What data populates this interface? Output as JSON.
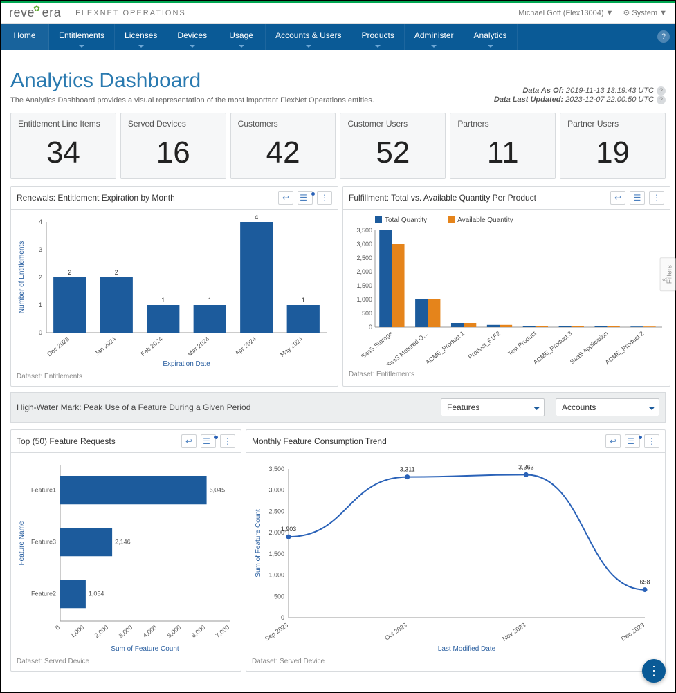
{
  "brand": {
    "logo_prefix": "reve",
    "logo_suffix": "era",
    "product": "FLEXNET OPERATIONS"
  },
  "user": {
    "display": "Michael Goff (Flex13004) ▼",
    "system": "System ▼"
  },
  "nav": [
    {
      "label": "Home"
    },
    {
      "label": "Entitlements"
    },
    {
      "label": "Licenses"
    },
    {
      "label": "Devices"
    },
    {
      "label": "Usage"
    },
    {
      "label": "Accounts & Users"
    },
    {
      "label": "Products"
    },
    {
      "label": "Administer"
    },
    {
      "label": "Analytics"
    }
  ],
  "title": "Analytics Dashboard",
  "subtitle": "The Analytics Dashboard provides a visual representation of the most important FlexNet Operations entities.",
  "data_as_of_label": "Data As Of:",
  "data_as_of": "2019-11-13 13:19:43 UTC",
  "data_updated_label": "Data Last Updated:",
  "data_updated": "2023-12-07 22:00:50 UTC",
  "kpis": [
    {
      "label": "Entitlement Line Items",
      "value": "34"
    },
    {
      "label": "Served Devices",
      "value": "16"
    },
    {
      "label": "Customers",
      "value": "42"
    },
    {
      "label": "Customer Users",
      "value": "52"
    },
    {
      "label": "Partners",
      "value": "11"
    },
    {
      "label": "Partner Users",
      "value": "19"
    }
  ],
  "renewals": {
    "title": "Renewals: Entitlement Expiration by Month",
    "dataset": "Dataset: Entitlements",
    "xlabel": "Expiration Date",
    "ylabel": "Number of Entitlements",
    "ymax": 4,
    "categories": [
      "Dec 2023",
      "Jan 2024",
      "Feb 2024",
      "Mar 2024",
      "Apr 2024",
      "May 2024"
    ],
    "values": [
      2,
      2,
      1,
      1,
      4,
      1
    ],
    "bar_color": "#1c5b9c"
  },
  "fulfillment": {
    "title": "Fulfillment: Total vs. Available Quantity Per Product",
    "dataset": "Dataset: Entitlements",
    "legend_total": "Total Quantity",
    "legend_avail": "Available Quantity",
    "ymax": 3500,
    "ytick": 500,
    "categories": [
      "SaaS Storage",
      "SaaS Metered O…",
      "ACME_Product 1",
      "Product_F1F2",
      "Test Product",
      "ACME_Product 3",
      "SaaS Application",
      "ACME_Product 2"
    ],
    "total": [
      3500,
      1000,
      150,
      80,
      50,
      40,
      30,
      20
    ],
    "available": [
      3000,
      1000,
      150,
      80,
      50,
      40,
      30,
      20
    ],
    "total_color": "#1c5b9c",
    "avail_color": "#e5841b"
  },
  "hwm": {
    "title": "High-Water Mark: Peak Use of a Feature During a Given Period",
    "features_sel": "Features",
    "accounts_sel": "Accounts"
  },
  "top50": {
    "title": "Top (50) Feature Requests",
    "dataset": "Dataset: Served Device",
    "xlabel": "Sum of Feature Count",
    "ylabel": "Feature Name",
    "xmax": 7000,
    "xtick": 1000,
    "categories": [
      "Feature1",
      "Feature3",
      "Feature2"
    ],
    "values": [
      6045,
      2146,
      1054
    ],
    "bar_color": "#1c5b9c"
  },
  "trend": {
    "title": "Monthly Feature Consumption Trend",
    "dataset": "Dataset: Served Device",
    "xlabel": "Last Modified Date",
    "ylabel": "Sum of Feature Count",
    "ymax": 3500,
    "ytick": 500,
    "categories": [
      "Sep 2023",
      "Oct 2023",
      "Nov 2023",
      "Dec 2023"
    ],
    "values": [
      1903,
      3311,
      3363,
      658
    ],
    "line_color": "#2a62b8"
  },
  "filters_label": "Filters"
}
